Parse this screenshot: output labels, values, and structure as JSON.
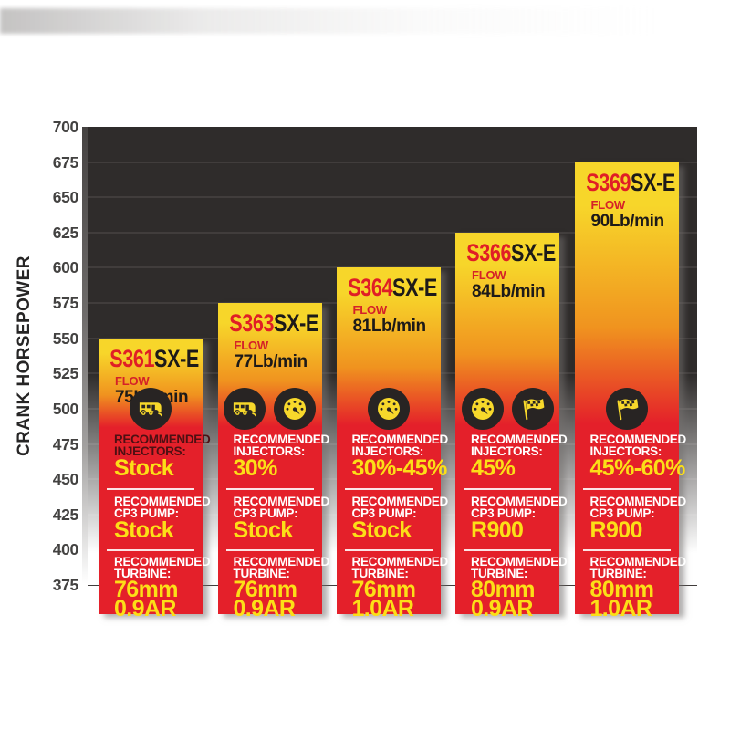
{
  "chart_data": {
    "type": "bar",
    "title": "",
    "xlabel": "",
    "ylabel": "CRANK HORSEPOWER",
    "ylim": [
      375,
      700
    ],
    "ytick_step": 25,
    "yticks": [
      700,
      675,
      650,
      625,
      600,
      575,
      550,
      525,
      500,
      475,
      450,
      425,
      400,
      375
    ],
    "grid": "horizontal",
    "categories": [
      "S361SX-E",
      "S363SX-E",
      "S364SX-E",
      "S366SX-E",
      "S369SX-E"
    ],
    "values": [
      550,
      575,
      600,
      625,
      675
    ],
    "labels": {
      "flow": "FLOW",
      "recommended": "RECOMMENDED",
      "injectors": "INJECTORS:",
      "cp3_pump": "CP3 PUMP:",
      "turbine": "TURBINE:"
    },
    "bars": [
      {
        "model": "S361",
        "series": "SX-E",
        "crank_hp": 550,
        "flow": "75Lb/min",
        "icons": [
          "camper-icon"
        ],
        "injectors": "Stock",
        "cp3_pump": "Stock",
        "turbine_size": "76mm",
        "turbine_ar": "0.9AR",
        "injectors_label_color": "#4d1013"
      },
      {
        "model": "S363",
        "series": "SX-E",
        "crank_hp": 575,
        "flow": "77Lb/min",
        "icons": [
          "camper-icon",
          "gauge-icon"
        ],
        "injectors": "30%",
        "cp3_pump": "Stock",
        "turbine_size": "76mm",
        "turbine_ar": "0.9AR",
        "injectors_label_color": "#ffffff"
      },
      {
        "model": "S364",
        "series": "SX-E",
        "crank_hp": 600,
        "flow": "81Lb/min",
        "icons": [
          "gauge-icon"
        ],
        "injectors": "30%-45%",
        "cp3_pump": "Stock",
        "turbine_size": "76mm",
        "turbine_ar": "1.0AR",
        "injectors_label_color": "#ffffff"
      },
      {
        "model": "S366",
        "series": "SX-E",
        "crank_hp": 625,
        "flow": "84Lb/min",
        "icons": [
          "gauge-icon",
          "flag-icon"
        ],
        "injectors": "45%",
        "cp3_pump": "R900",
        "turbine_size": "80mm",
        "turbine_ar": "0.9AR",
        "injectors_label_color": "#ffffff"
      },
      {
        "model": "S369",
        "series": "SX-E",
        "crank_hp": 675,
        "flow": "90Lb/min",
        "icons": [
          "flag-icon"
        ],
        "injectors": "45%-60%",
        "cp3_pump": "R900",
        "turbine_size": "80mm",
        "turbine_ar": "1.0AR",
        "injectors_label_color": "#ffffff"
      }
    ]
  },
  "colors": {
    "bar_gradient_top": "#f7d62a",
    "bar_gradient_mid": "#f0931f",
    "bar_gradient_bottom": "#e4202a",
    "value_yellow": "#fcdf17",
    "model_red": "#e01e26",
    "series_black": "#1d1a19",
    "plot_background": "#2f2c2b",
    "gridline": "#413d3c",
    "icon_circle": "#282423",
    "icon_glyph": "#f7d82b"
  }
}
